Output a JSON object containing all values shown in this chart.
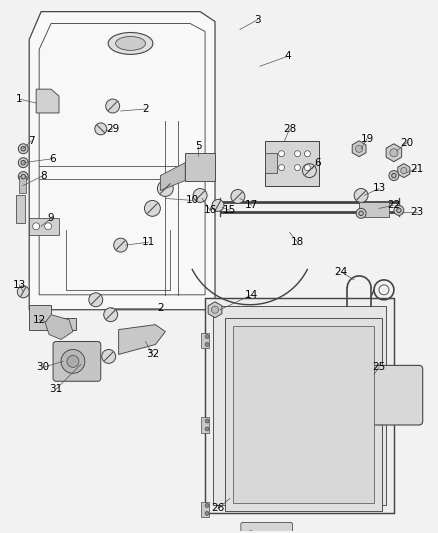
{
  "bg_color": "#f2f2f2",
  "line_color": "#444444",
  "label_color": "#000000",
  "lw": 0.8
}
